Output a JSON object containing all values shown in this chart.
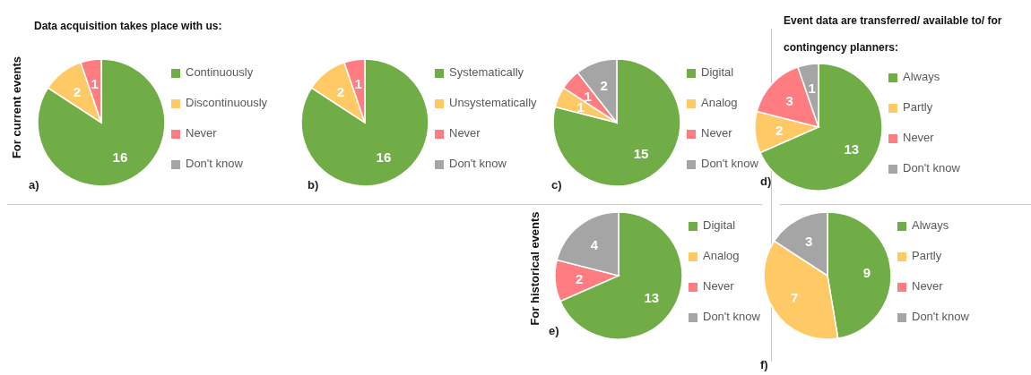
{
  "chart_data": [
    {
      "type": "pie",
      "title": "Data acquisition takes place with us:",
      "ylabel": "For current events",
      "categories": [
        "Continuously",
        "Discontinuously",
        "Never",
        "Don't know"
      ],
      "values": [
        16,
        2,
        1,
        0
      ],
      "colors": [
        "#70ad47",
        "#ffc965",
        "#ff7c80",
        "#a5a5a5"
      ],
      "value_labels": [
        "16",
        "2",
        "1",
        null
      ],
      "legend": "right",
      "annotations": [
        "a)"
      ]
    },
    {
      "type": "pie",
      "categories": [
        "Systematically",
        "Unsystematically",
        "Never",
        "Don't know"
      ],
      "values": [
        16,
        2,
        1,
        0
      ],
      "colors": [
        "#70ad47",
        "#ffc965",
        "#ff7c80",
        "#a5a5a5"
      ],
      "value_labels": [
        "16",
        "2",
        "1",
        null
      ],
      "legend": "right",
      "annotations": [
        "b)"
      ]
    },
    {
      "type": "pie",
      "categories": [
        "Digital",
        "Analog",
        "Never",
        "Don't know"
      ],
      "values": [
        15,
        1,
        1,
        2
      ],
      "colors": [
        "#70ad47",
        "#ffc965",
        "#ff7c80",
        "#a5a5a5"
      ],
      "value_labels": [
        "15",
        "1",
        "1",
        "2"
      ],
      "legend": "right",
      "annotations": [
        "c)"
      ]
    },
    {
      "type": "pie",
      "title": "Event data are transferred/ available to/ for contingency planners:",
      "categories": [
        "Always",
        "Partly",
        "Never",
        "Don't know"
      ],
      "values": [
        13,
        2,
        3,
        1
      ],
      "colors": [
        "#70ad47",
        "#ffc965",
        "#ff7c80",
        "#a5a5a5"
      ],
      "value_labels": [
        "13",
        "2",
        "3",
        "1"
      ],
      "legend": "right",
      "annotations": [
        "d)"
      ]
    },
    {
      "type": "pie",
      "ylabel": "For historical events",
      "categories": [
        "Digital",
        "Analog",
        "Never",
        "Don't know"
      ],
      "values": [
        13,
        0,
        2,
        4
      ],
      "colors": [
        "#70ad47",
        "#ffc965",
        "#ff7c80",
        "#a5a5a5"
      ],
      "value_labels": [
        "13",
        null,
        "2",
        "4"
      ],
      "legend": "right",
      "annotations": [
        "e)"
      ]
    },
    {
      "type": "pie",
      "categories": [
        "Always",
        "Partly",
        "Never",
        "Don't know"
      ],
      "values": [
        9,
        7,
        0,
        3
      ],
      "colors": [
        "#70ad47",
        "#ffc965",
        "#ff7c80",
        "#a5a5a5"
      ],
      "value_labels": [
        "9",
        "7",
        null,
        "3"
      ],
      "legend": "right",
      "annotations": [
        "f)"
      ]
    }
  ]
}
